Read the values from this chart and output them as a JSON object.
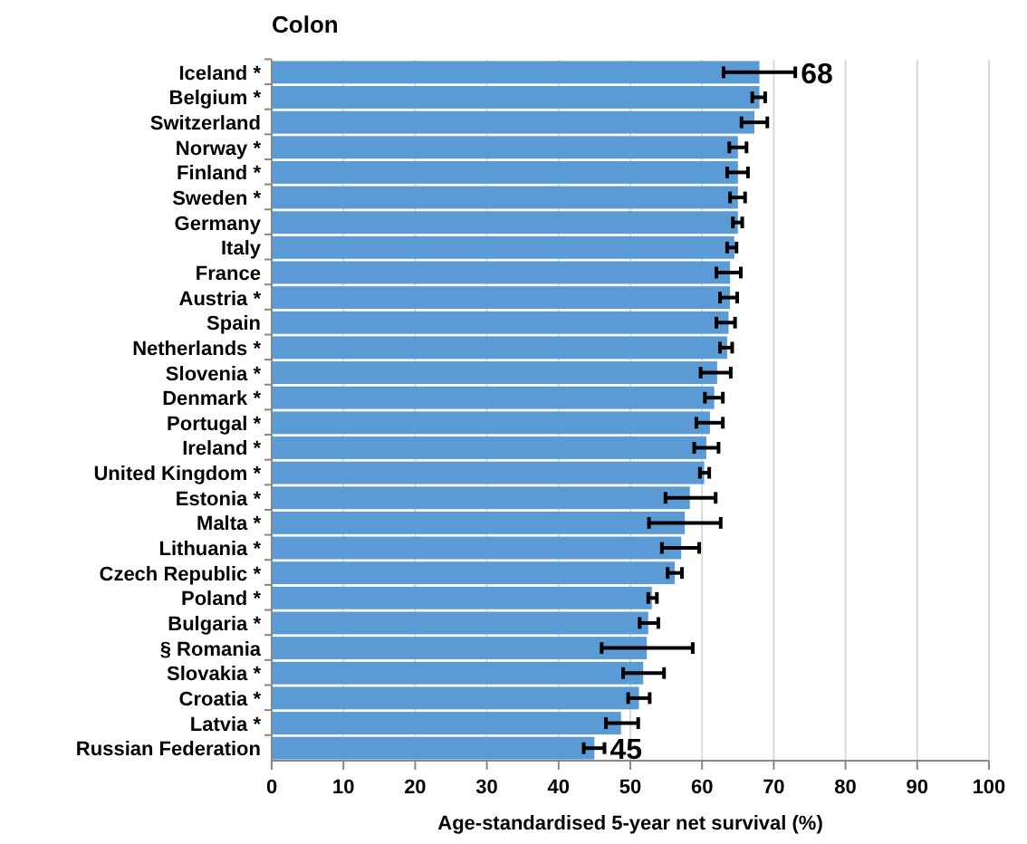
{
  "chart_data": {
    "type": "bar",
    "orientation": "horizontal",
    "title": "Colon",
    "xlabel": "Age-standardised 5-year net survival (%)",
    "categories": [
      "Iceland *",
      "Belgium *",
      "Switzerland",
      "Norway *",
      "Finland *",
      "Sweden *",
      "Germany",
      "Italy",
      "France",
      "Austria *",
      "Spain",
      "Netherlands *",
      "Slovenia *",
      "Denmark *",
      "Portugal *",
      "Ireland *",
      "United Kingdom *",
      "Estonia *",
      "Malta *",
      "Lithuania *",
      "Czech Republic *",
      "Poland *",
      "Bulgaria *",
      "§ Romania",
      "Slovakia *",
      "Croatia *",
      "Latvia *",
      "Russian Federation"
    ],
    "values": [
      68,
      68,
      67.3,
      65,
      65,
      65,
      65,
      64.5,
      63.9,
      63.9,
      63.7,
      63.5,
      62.1,
      61.7,
      61.1,
      60.6,
      60.3,
      58.3,
      57.6,
      57.1,
      56.2,
      53,
      52.5,
      52.3,
      51.8,
      51.2,
      48.7,
      45
    ],
    "errors": [
      [
        63,
        73
      ],
      [
        67,
        68.8
      ],
      [
        65.5,
        69.1
      ],
      [
        63.8,
        66.2
      ],
      [
        63.5,
        66.4
      ],
      [
        63.9,
        66
      ],
      [
        64.3,
        65.6
      ],
      [
        63.5,
        64.8
      ],
      [
        62,
        65.4
      ],
      [
        62.5,
        64.9
      ],
      [
        62,
        64.6
      ],
      [
        62.5,
        64.2
      ],
      [
        59.8,
        64
      ],
      [
        60.4,
        62.9
      ],
      [
        59.2,
        62.9
      ],
      [
        58.9,
        62.3
      ],
      [
        59.7,
        61
      ],
      [
        54.9,
        61.9
      ],
      [
        52.6,
        62.6
      ],
      [
        54.4,
        59.6
      ],
      [
        55.2,
        57.2
      ],
      [
        52.5,
        53.7
      ],
      [
        51.3,
        53.9
      ],
      [
        46,
        58.7
      ],
      [
        49,
        54.7
      ],
      [
        49.7,
        52.7
      ],
      [
        46.6,
        51.1
      ],
      [
        43.5,
        46.4
      ]
    ],
    "value_labels": [
      "68",
      null,
      null,
      null,
      null,
      null,
      null,
      null,
      null,
      null,
      null,
      null,
      null,
      null,
      null,
      null,
      null,
      null,
      null,
      null,
      null,
      null,
      null,
      null,
      null,
      null,
      null,
      "45"
    ],
    "color": "#5b9bd5",
    "xlim": [
      0,
      100
    ],
    "xticks": [
      0,
      10,
      20,
      30,
      40,
      50,
      60,
      70,
      80,
      90,
      100
    ],
    "grid": "x"
  }
}
